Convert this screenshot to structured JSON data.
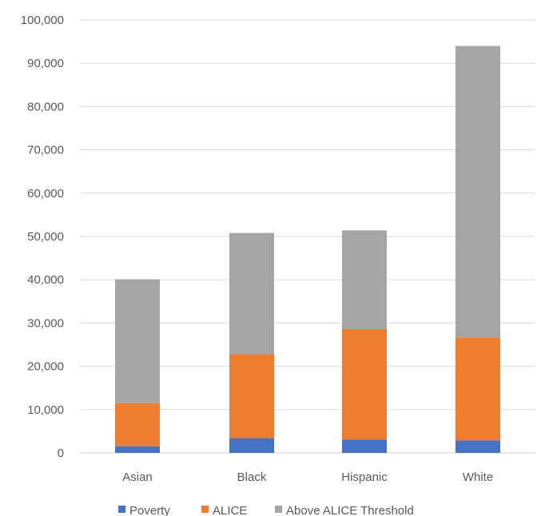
{
  "chart_data": {
    "type": "bar",
    "stacked": true,
    "categories": [
      "Asian",
      "Black",
      "Hispanic",
      "White"
    ],
    "series": [
      {
        "name": "Poverty",
        "color": "#4472C4",
        "values": [
          1500,
          3400,
          3100,
          2900
        ]
      },
      {
        "name": "ALICE",
        "color": "#ED7D31",
        "values": [
          10000,
          19400,
          25500,
          23800
        ]
      },
      {
        "name": "Above ALICE Threshold",
        "color": "#A5A5A5",
        "values": [
          28600,
          28000,
          22800,
          67300
        ]
      }
    ],
    "y_ticks": [
      "0",
      "10,000",
      "20,000",
      "30,000",
      "40,000",
      "50,000",
      "60,000",
      "70,000",
      "80,000",
      "90,000",
      "100,000"
    ],
    "ylim": [
      0,
      100000
    ],
    "grid": true,
    "legend": "bottom"
  }
}
